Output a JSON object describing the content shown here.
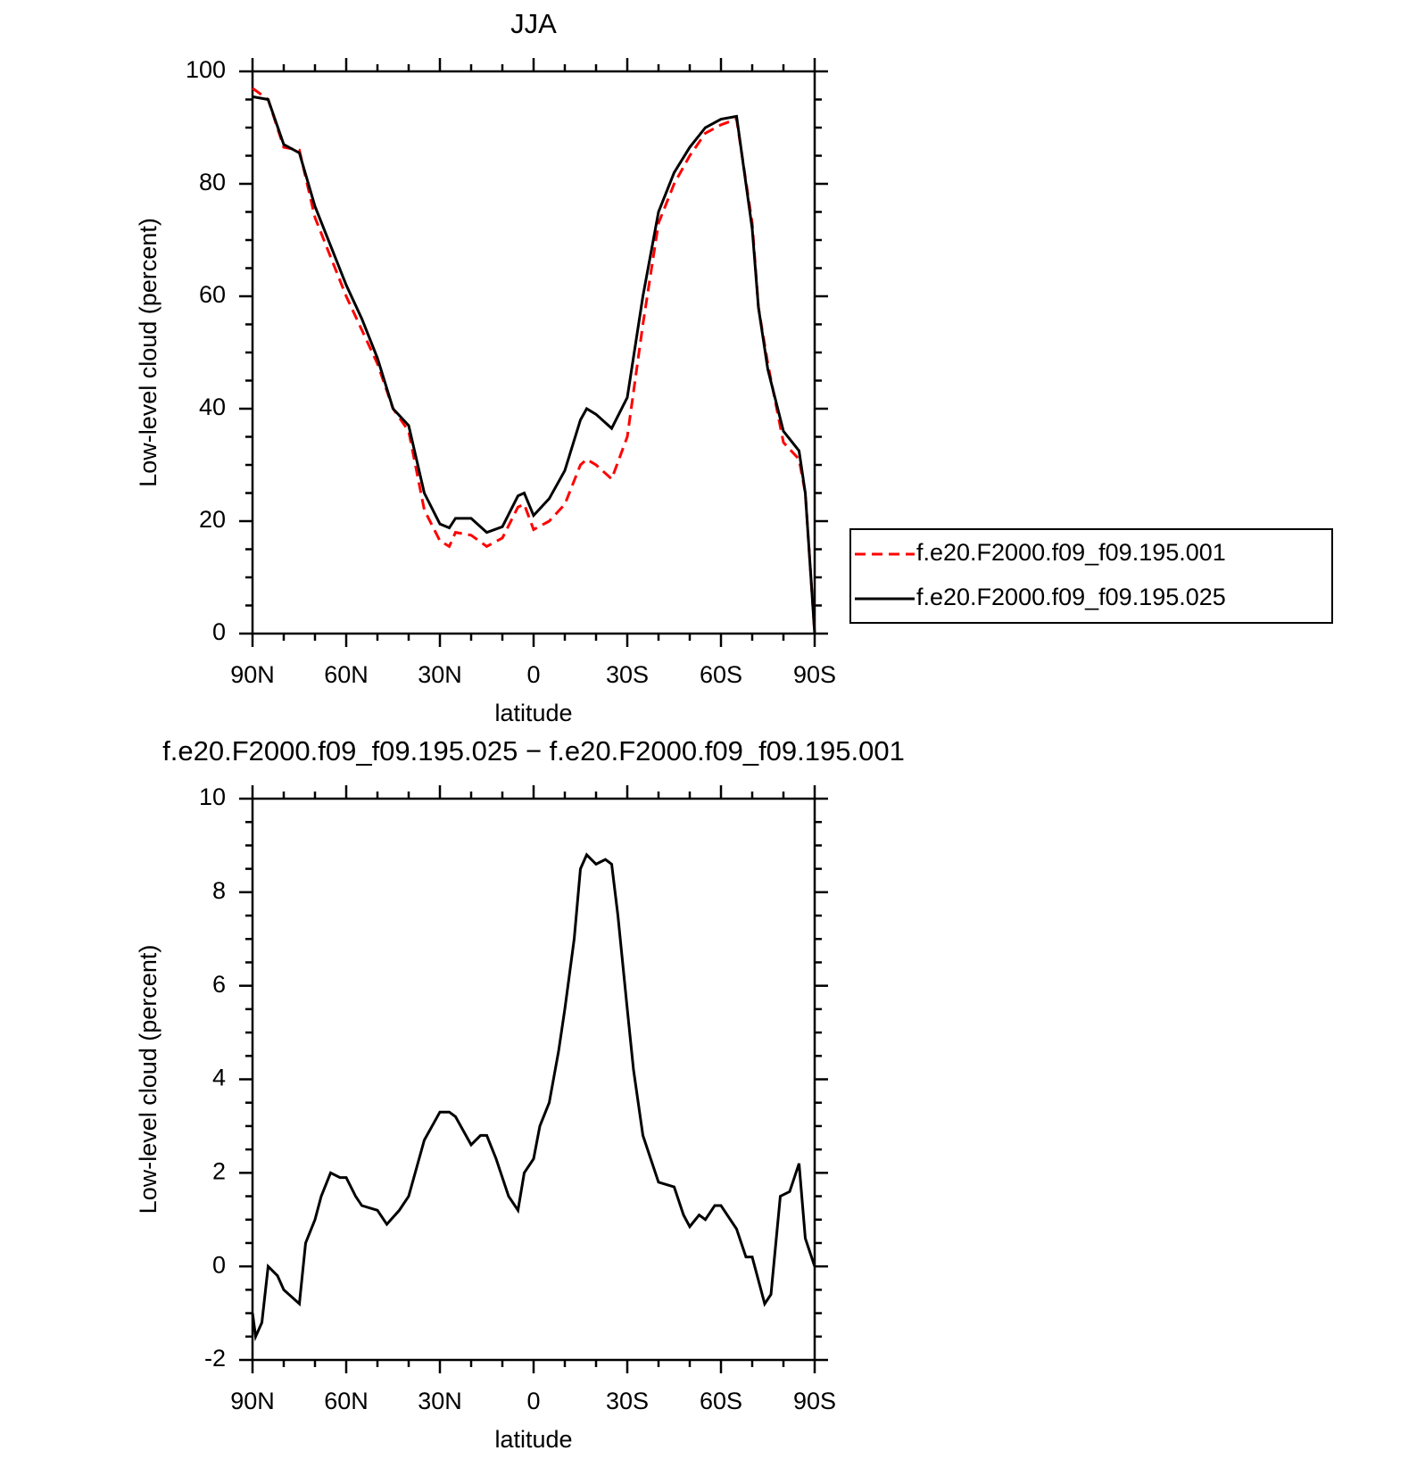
{
  "chart_data": [
    {
      "type": "line",
      "title": "JJA",
      "xlabel": "latitude",
      "ylabel": "Low-level cloud (percent)",
      "x": [
        90,
        85,
        80,
        75,
        70,
        65,
        60,
        55,
        50,
        45,
        40,
        35,
        30,
        27,
        25,
        20,
        15,
        10,
        5,
        3,
        0,
        -5,
        -10,
        -15,
        -17,
        -20,
        -25,
        -30,
        -35,
        -40,
        -45,
        -50,
        -55,
        -60,
        -65,
        -70,
        -72,
        -75,
        -80,
        -85,
        -87,
        -90
      ],
      "series": [
        {
          "name": "f.e20.F2000.f09_f09.195.001",
          "color": "#ff0000",
          "dash": true,
          "values": [
            97,
            95,
            86.5,
            86,
            74,
            67,
            60,
            54,
            48,
            40,
            36,
            22,
            16.5,
            15.5,
            18,
            17.5,
            15.5,
            17,
            22.5,
            23,
            18.5,
            20,
            23,
            30,
            31,
            30,
            27.5,
            35,
            55,
            73,
            80,
            85,
            89,
            90.5,
            91.5,
            73,
            58,
            48,
            34,
            31,
            25,
            0
          ]
        },
        {
          "name": "f.e20.F2000.f09_f09.195.025",
          "color": "#000000",
          "dash": false,
          "values": [
            95.5,
            95,
            87,
            85.5,
            76,
            69,
            62,
            56,
            49,
            40,
            37,
            25,
            19.5,
            18.8,
            20.5,
            20.5,
            18,
            19,
            24.5,
            25,
            21,
            24,
            29,
            38,
            40,
            39,
            36.5,
            42,
            60,
            75,
            82,
            86.5,
            90,
            91.5,
            92,
            72,
            58,
            47,
            36,
            32.5,
            25,
            0
          ]
        }
      ],
      "xlim": [
        90,
        -90
      ],
      "ylim": [
        0,
        100
      ],
      "xticks": [
        {
          "value": 90,
          "label": "90N"
        },
        {
          "value": 60,
          "label": "60N"
        },
        {
          "value": 30,
          "label": "30N"
        },
        0,
        {
          "value": -30,
          "label": "30S"
        },
        {
          "value": -60,
          "label": "60S"
        },
        {
          "value": -90,
          "label": "90S"
        }
      ],
      "yticks": [
        0,
        20,
        40,
        60,
        80,
        100
      ],
      "legend": "right"
    },
    {
      "type": "line",
      "title": "f.e20.F2000.f09_f09.195.025 − f.e20.F2000.f09_f09.195.001",
      "xlabel": "latitude",
      "ylabel": "Low-level cloud (percent)",
      "x": [
        90,
        89,
        87,
        85,
        82,
        80,
        75,
        73,
        70,
        68,
        65,
        62,
        60,
        57,
        55,
        50,
        47,
        43,
        40,
        35,
        30,
        27,
        25,
        20,
        17,
        15,
        12,
        8,
        5,
        3,
        0,
        -2,
        -5,
        -8,
        -10,
        -13,
        -15,
        -17,
        -20,
        -23,
        -25,
        -27,
        -30,
        -32,
        -35,
        -38,
        -40,
        -45,
        -48,
        -50,
        -53,
        -55,
        -58,
        -60,
        -65,
        -68,
        -70,
        -72,
        -74,
        -76,
        -79,
        -82,
        -84,
        -85,
        -87,
        -90
      ],
      "series": [
        {
          "color": "#000000",
          "dash": false,
          "values": [
            -1,
            -1.5,
            -1.2,
            0,
            -0.2,
            -0.5,
            -0.8,
            0.5,
            1,
            1.5,
            2,
            1.9,
            1.9,
            1.5,
            1.3,
            1.2,
            0.9,
            1.2,
            1.5,
            2.7,
            3.3,
            3.3,
            3.2,
            2.6,
            2.8,
            2.8,
            2.3,
            1.5,
            1.2,
            2,
            2.3,
            3,
            3.5,
            4.6,
            5.5,
            7,
            8.5,
            8.8,
            8.6,
            8.7,
            8.6,
            7.5,
            5.5,
            4.2,
            2.8,
            2.2,
            1.8,
            1.7,
            1.1,
            0.85,
            1.1,
            1,
            1.3,
            1.3,
            0.8,
            0.2,
            0.2,
            -0.3,
            -0.8,
            -0.6,
            1.5,
            1.6,
            2,
            2.2,
            0.6,
            0
          ]
        }
      ],
      "xlim": [
        90,
        -90
      ],
      "ylim": [
        -2,
        10
      ],
      "xticks": [
        {
          "value": 90,
          "label": "90N"
        },
        {
          "value": 60,
          "label": "60N"
        },
        {
          "value": 30,
          "label": "30N"
        },
        0,
        {
          "value": -30,
          "label": "30S"
        },
        {
          "value": -60,
          "label": "60S"
        },
        {
          "value": -90,
          "label": "90S"
        }
      ],
      "yticks": [
        -2,
        0,
        2,
        4,
        6,
        8,
        10
      ]
    }
  ]
}
